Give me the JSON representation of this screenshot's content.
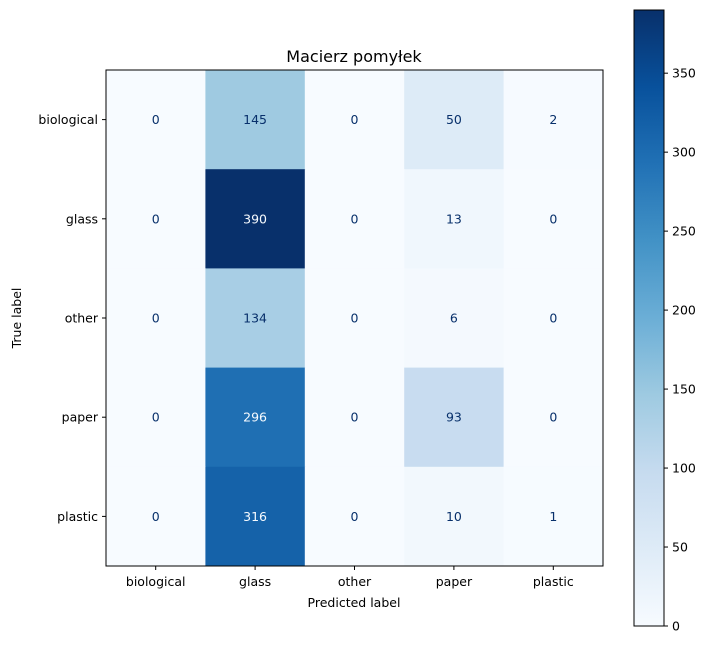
{
  "chart_data": {
    "type": "heatmap",
    "title": "Macierz pomyłek",
    "xlabel": "Predicted label",
    "ylabel": "True label",
    "x_categories": [
      "biological",
      "glass",
      "other",
      "paper",
      "plastic"
    ],
    "y_categories": [
      "biological",
      "glass",
      "other",
      "paper",
      "plastic"
    ],
    "values": [
      [
        0,
        145,
        0,
        50,
        2
      ],
      [
        0,
        390,
        0,
        13,
        0
      ],
      [
        0,
        134,
        0,
        6,
        0
      ],
      [
        0,
        296,
        0,
        93,
        0
      ],
      [
        0,
        316,
        0,
        10,
        1
      ]
    ],
    "colormap": "Blues",
    "vmin": 0,
    "vmax": 390,
    "colorbar": {
      "ticks": [
        0,
        50,
        100,
        150,
        200,
        250,
        300,
        350
      ]
    },
    "grid": false,
    "text_colors": {
      "dark": "#08306b",
      "light": "#f7fbff"
    }
  }
}
